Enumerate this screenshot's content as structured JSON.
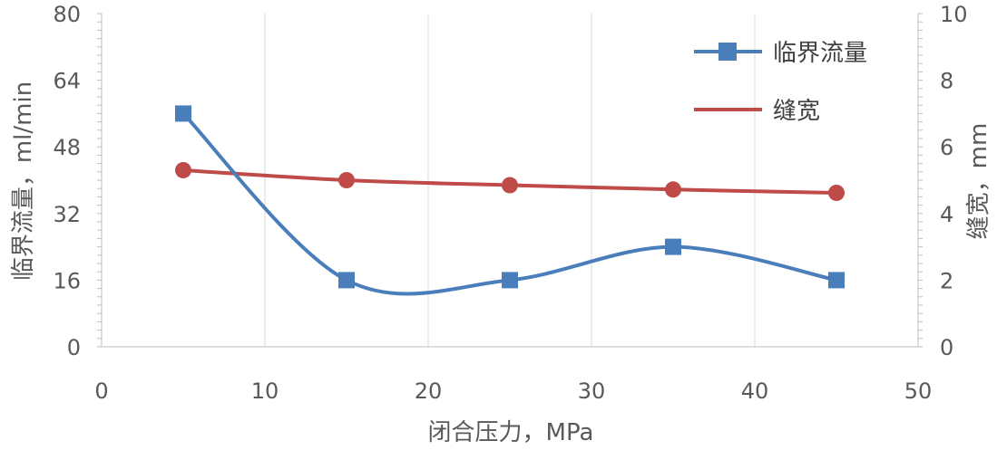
{
  "chart_data": {
    "type": "line",
    "x": [
      5,
      15,
      25,
      35,
      45
    ],
    "xlabel": "闭合压力，MPa",
    "ylabel": "临界流量，ml/min",
    "y2label": "缝宽，mm",
    "xlim": [
      0,
      50
    ],
    "ylim": [
      0,
      80
    ],
    "y2lim": [
      0,
      10
    ],
    "xticks": [
      "0",
      "10",
      "20",
      "30",
      "40",
      "50"
    ],
    "yticks": [
      "0",
      "16",
      "32",
      "48",
      "64",
      "80"
    ],
    "y2ticks": [
      "0",
      "2",
      "4",
      "6",
      "8",
      "10"
    ],
    "grid": "vertical",
    "legend": "top-right",
    "series": [
      {
        "name": "临界流量",
        "axis": "left",
        "values": [
          56,
          16,
          16,
          24,
          16
        ],
        "color": "#4a7ebb",
        "marker": "square",
        "smooth": true
      },
      {
        "name": "缝宽",
        "axis": "right",
        "values": [
          5.3,
          5.0,
          4.85,
          4.72,
          4.62
        ],
        "color": "#be4b48",
        "marker": "circle",
        "smooth": true
      }
    ]
  }
}
